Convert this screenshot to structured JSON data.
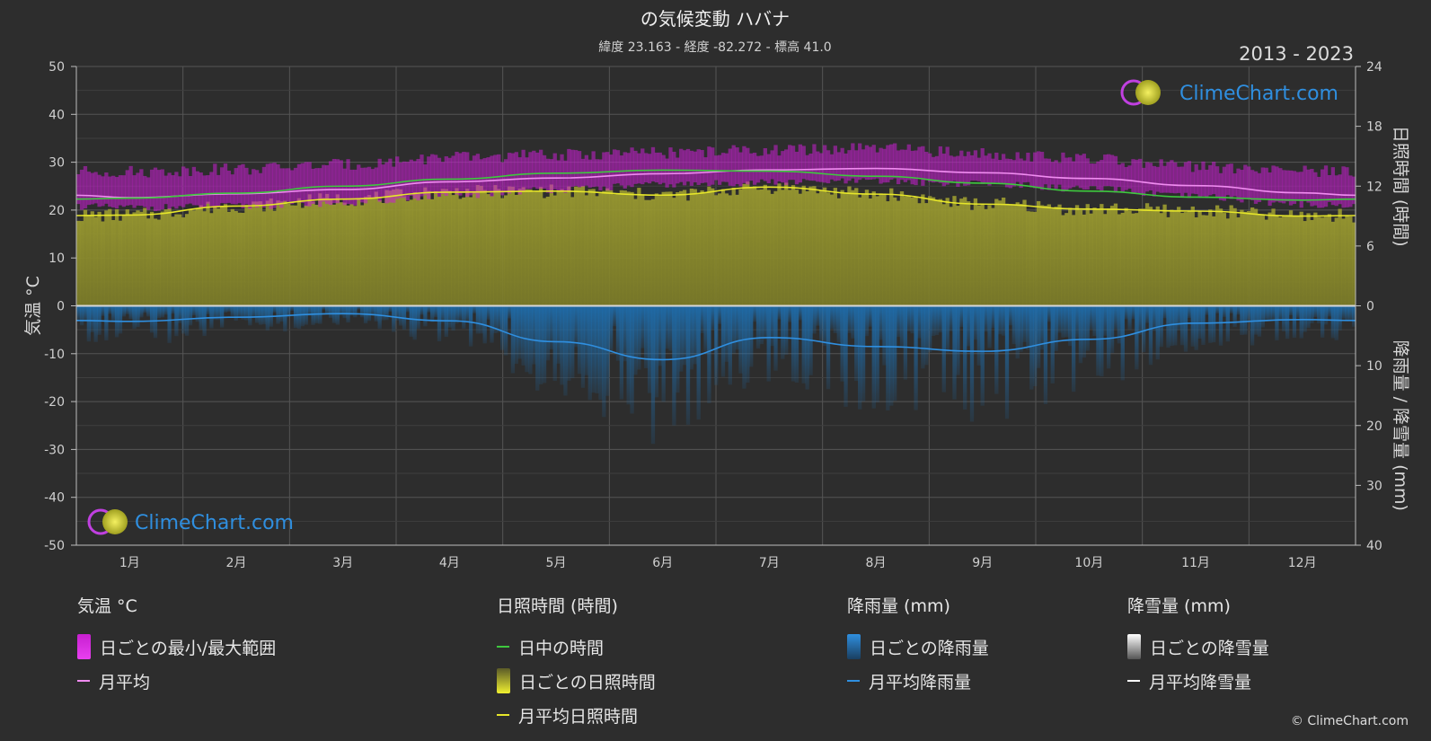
{
  "title": "の気候変動 ハバナ",
  "subtitle": "緯度 23.163 - 経度 -82.272 - 標高 41.0",
  "year_range": "2013 - 2023",
  "brand": "ClimeChart.com",
  "copyright": "© ClimeChart.com",
  "colors": {
    "background": "#2d2d2d",
    "grid": "#555555",
    "temp_range": "#c71fd0",
    "temp_avg": "#f08cf0",
    "daylight": "#3ec83e",
    "sunshine_fill": "#8e8e2c",
    "sunshine_avg": "#e6e62a",
    "rain": "#1e6fb0",
    "rain_avg": "#2f8fe0",
    "snow_avg": "#ffffff",
    "brand_text": "#2f8fe0"
  },
  "chart_data": {
    "type": "line",
    "categories": [
      "1月",
      "2月",
      "3月",
      "4月",
      "5月",
      "6月",
      "7月",
      "8月",
      "9月",
      "10月",
      "11月",
      "12月"
    ],
    "left_axis": {
      "label": "気温 °C",
      "ylim": [
        -50,
        50
      ],
      "ticks": [
        50,
        40,
        30,
        20,
        10,
        0,
        -10,
        -20,
        -30,
        -40,
        -50
      ]
    },
    "right_axis_top": {
      "label": "日照時間 (時間)",
      "ylim": [
        0,
        24
      ],
      "ticks": [
        24,
        18,
        12,
        6,
        0
      ]
    },
    "right_axis_bottom": {
      "label": "降雨量 / 降雪量 (mm)",
      "ylim": [
        0,
        40
      ],
      "ticks": [
        0,
        10,
        20,
        30,
        40
      ]
    },
    "grid": true,
    "series": [
      {
        "name": "月平均",
        "axis": "temp_c",
        "values": [
          22.6,
          23.4,
          24.3,
          25.9,
          26.7,
          27.6,
          28.4,
          28.7,
          27.8,
          26.6,
          25.1,
          23.6
        ]
      },
      {
        "name": "日中の時間",
        "axis": "hours",
        "values": [
          10.8,
          11.3,
          12.0,
          12.7,
          13.3,
          13.6,
          13.5,
          13.0,
          12.3,
          11.5,
          10.9,
          10.6
        ]
      },
      {
        "name": "月平均日照時間",
        "axis": "hours",
        "values": [
          9.1,
          10.0,
          10.7,
          11.4,
          11.5,
          11.1,
          11.9,
          11.2,
          10.2,
          9.7,
          9.5,
          9.0
        ]
      },
      {
        "name": "月平均降雨量",
        "axis": "mm",
        "values": [
          2.6,
          1.9,
          1.3,
          2.5,
          6.0,
          9.0,
          5.3,
          6.8,
          7.6,
          5.6,
          2.9,
          2.3
        ]
      },
      {
        "name": "月平均降雪量",
        "axis": "mm",
        "values": [
          0,
          0,
          0,
          0,
          0,
          0,
          0,
          0,
          0,
          0,
          0,
          0
        ]
      }
    ],
    "daily_range": {
      "name": "日ごとの最小/最大範囲",
      "min": [
        20.5,
        20.8,
        21.5,
        23.0,
        24.3,
        25.3,
        25.8,
        26.0,
        25.5,
        24.4,
        22.8,
        21.2
      ],
      "max": [
        28.0,
        28.6,
        29.5,
        31.0,
        31.5,
        32.0,
        32.5,
        32.8,
        31.8,
        30.6,
        29.0,
        28.1
      ]
    }
  },
  "legend": {
    "temp": {
      "title": "気温 °C",
      "items": [
        "日ごとの最小/最大範囲",
        "月平均"
      ]
    },
    "sun": {
      "title": "日照時間 (時間)",
      "items": [
        "日中の時間",
        "日ごとの日照時間",
        "月平均日照時間"
      ]
    },
    "rain": {
      "title": "降雨量 (mm)",
      "items": [
        "日ごとの降雨量",
        "月平均降雨量"
      ]
    },
    "snow": {
      "title": "降雪量 (mm)",
      "items": [
        "日ごとの降雪量",
        "月平均降雪量"
      ]
    }
  }
}
